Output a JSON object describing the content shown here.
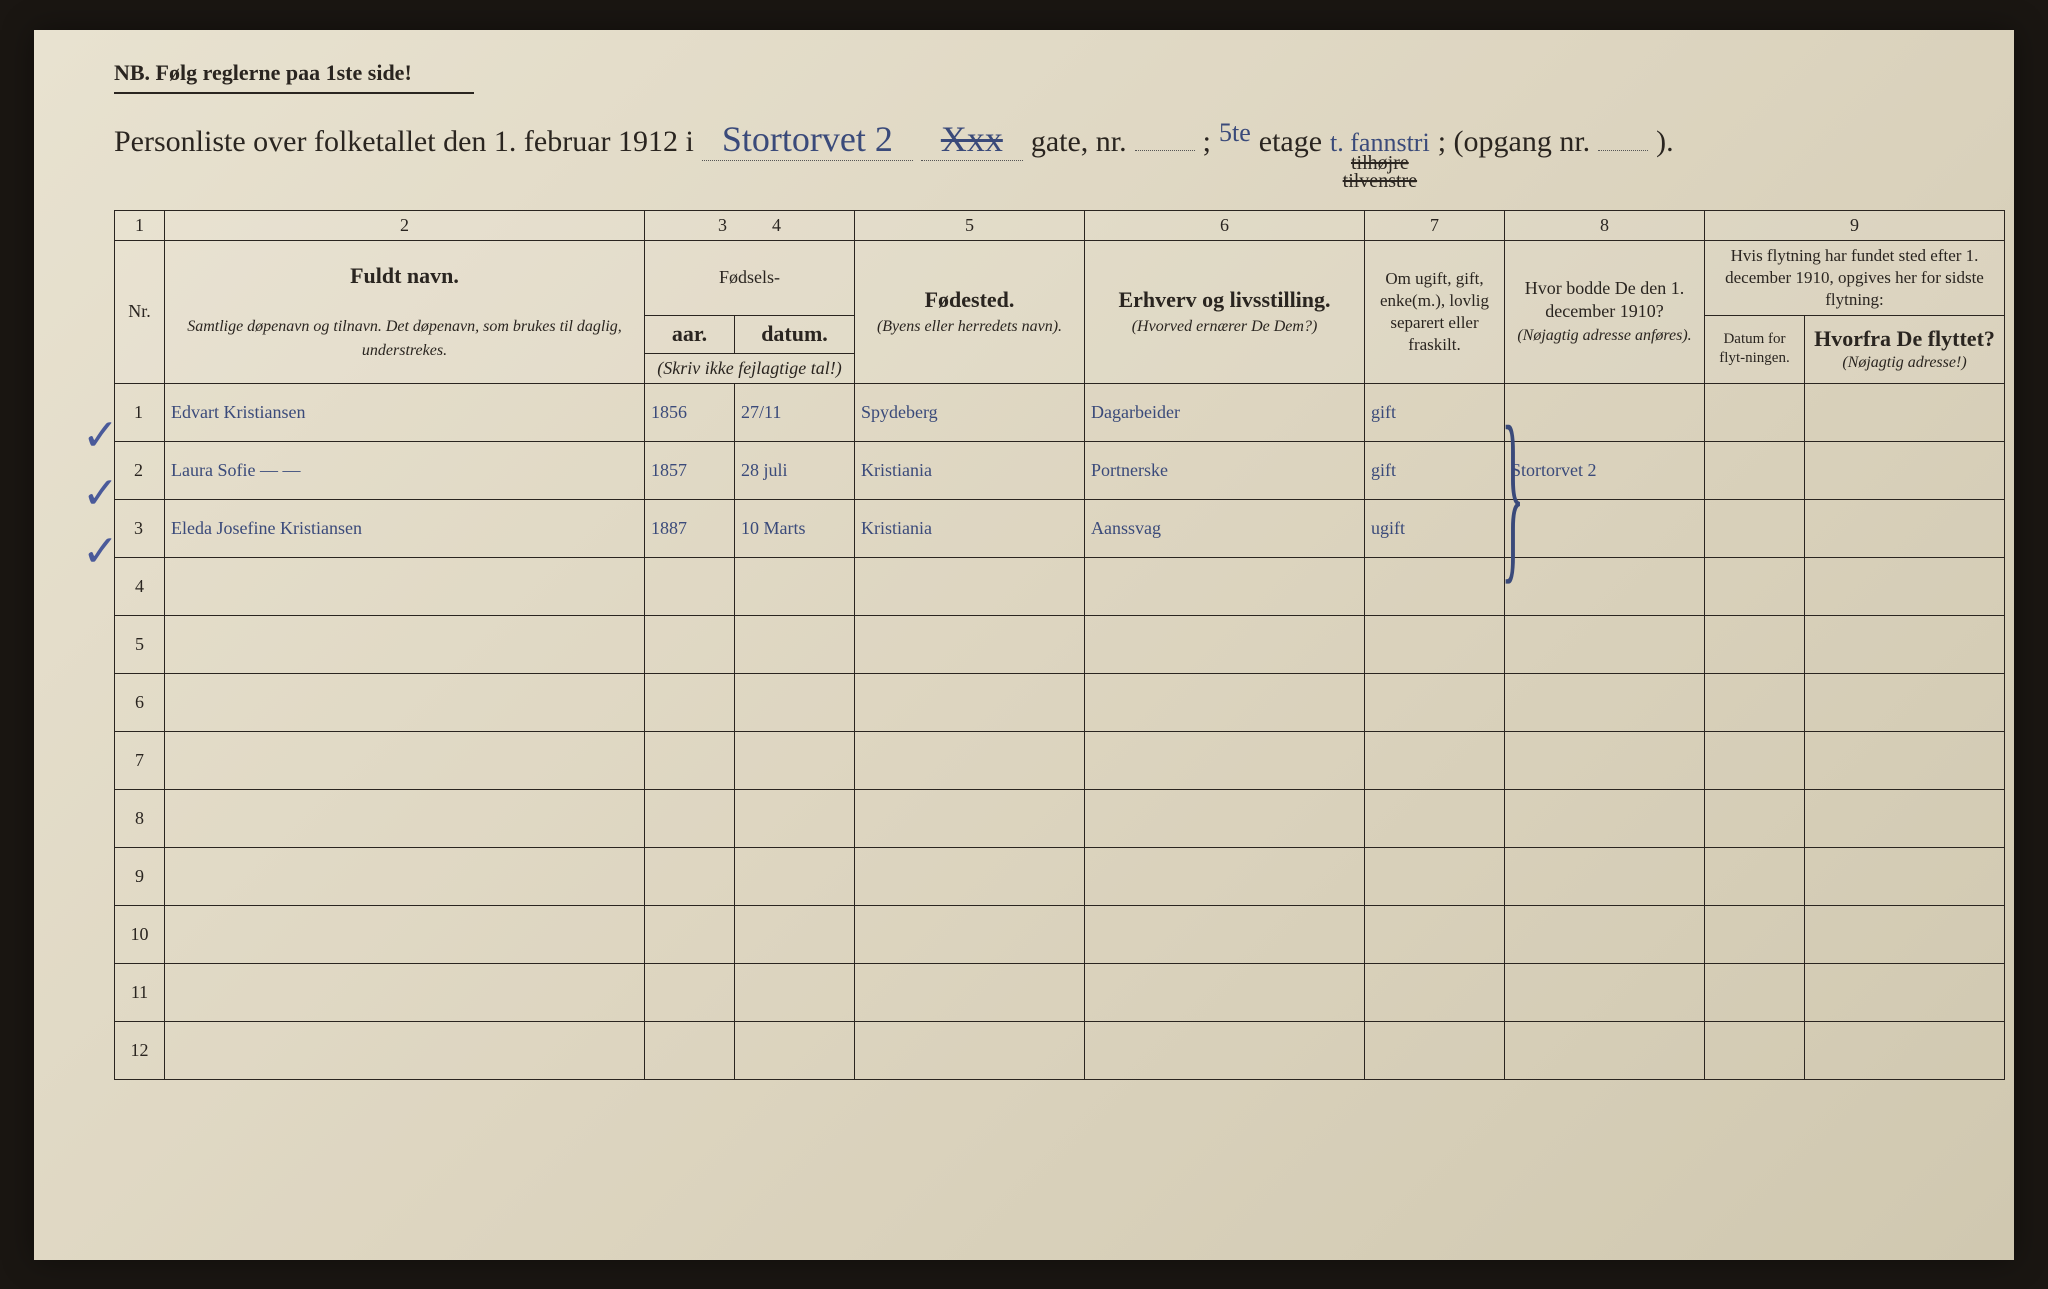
{
  "nb": "NB.  Følg reglerne paa 1ste side!",
  "title": {
    "prefix": "Personliste over folketallet den 1. februar 1912 i",
    "street_hand": "Stortorvet 2",
    "struck": "Xxx",
    "gate": "gate, nr.",
    "semicolon": ";",
    "floor_hand": "5te",
    "etage": "etage",
    "side_hand": "t. fannstri",
    "side_struck1": "tilhøjre",
    "side_struck2": "tilvenstre",
    "opgang": "; (opgang nr.",
    "closing": ")."
  },
  "columns": {
    "nums": [
      "1",
      "2",
      "3",
      "4",
      "5",
      "6",
      "7",
      "8",
      "9"
    ],
    "nr": "Nr.",
    "navn_main": "Fuldt navn.",
    "navn_sub": "Samtlige døpenavn og tilnavn. Det døpenavn, som brukes til daglig, understrekes.",
    "fodsels": "Fødsels-",
    "aar": "aar.",
    "datum": "datum.",
    "aar_sub": "(Skriv ikke fejlagtige tal!)",
    "fodested": "Fødested.",
    "fodested_sub": "(Byens eller herredets navn).",
    "erhverv": "Erhverv og livsstilling.",
    "erhverv_sub": "(Hvorved ernærer De Dem?)",
    "status": "Om ugift, gift, enke(m.), lovlig separert eller fraskilt.",
    "bodde": "Hvor bodde De den 1. december 1910?",
    "bodde_sub": "(Nøjagtig adresse anføres).",
    "flyt_main": "Hvis flytning har fundet sted efter 1. december 1910, opgives her for sidste flytning:",
    "flyt_datum": "Datum for flyt-ningen.",
    "flyt_hvorfra": "Hvorfra De flyttet?",
    "flyt_hvorfra_sub": "(Nøjagtig adresse!)"
  },
  "rows": [
    {
      "nr": "1",
      "navn": "Edvart Kristiansen",
      "aar": "1856",
      "datum": "27/11",
      "sted": "Spydeberg",
      "erhverv": "Dagarbeider",
      "status": "gift",
      "bodde": "",
      "d": "",
      "h": ""
    },
    {
      "nr": "2",
      "navn": "Laura Sofie  —  —",
      "aar": "1857",
      "datum": "28 juli",
      "sted": "Kristiania",
      "erhverv": "Portnerske",
      "status": "gift",
      "bodde": "Stortorvet 2",
      "d": "",
      "h": ""
    },
    {
      "nr": "3",
      "navn": "Eleda Josefine Kristiansen",
      "aar": "1887",
      "datum": "10 Marts",
      "sted": "Kristiania",
      "erhverv": "Aanssvag",
      "status": "ugift",
      "bodde": "",
      "d": "",
      "h": ""
    }
  ],
  "empty_rows": [
    "4",
    "5",
    "6",
    "7",
    "8",
    "9",
    "10",
    "11",
    "12"
  ],
  "colwidths": {
    "c1": 50,
    "c2": 480,
    "c3": 90,
    "c4": 120,
    "c5": 230,
    "c6": 280,
    "c7": 140,
    "c8": 200,
    "c9a": 100,
    "c9b": 200
  },
  "colors": {
    "ink": "#2a2520",
    "handwriting": "#3a4a7a",
    "paper_light": "#e8e2d0",
    "paper_dark": "#d0c8b0"
  }
}
